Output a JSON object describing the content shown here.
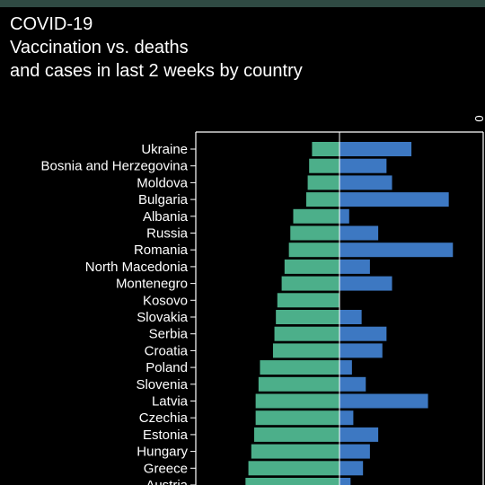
{
  "header": {
    "line1": "COVID-19",
    "line2": "Vaccination vs. deaths",
    "line3": "and cases in last 2 weeks by country"
  },
  "colors": {
    "background": "#000000",
    "top_bar": "#2f4a43",
    "vaccination_bar": "#4caf8a",
    "cases_bar": "#3d78c2",
    "axis": "#ffffff"
  },
  "chart_data": {
    "type": "bar",
    "orientation": "horizontal",
    "categories": [
      "Ukraine",
      "Bosnia and Herzegovina",
      "Moldova",
      "Bulgaria",
      "Albania",
      "Russia",
      "Romania",
      "North Macedonia",
      "Montenegro",
      "Kosovo",
      "Slovakia",
      "Serbia",
      "Croatia",
      "Poland",
      "Slovenia",
      "Latvia",
      "Czechia",
      "Estonia",
      "Hungary",
      "Greece",
      "Austria"
    ],
    "series": [
      {
        "values": [
          19,
          21,
          22,
          23,
          32,
          34,
          35,
          38,
          40,
          43,
          44,
          45,
          46,
          55,
          56,
          58,
          58,
          59,
          61,
          63,
          65
        ]
      },
      {
        "values": [
          52,
          34,
          38,
          79,
          7,
          28,
          82,
          22,
          38,
          0,
          16,
          34,
          31,
          9,
          19,
          64,
          10,
          28,
          22,
          17,
          8
        ]
      }
    ],
    "axis_tick_label": "0",
    "grid": false,
    "legend": "none"
  }
}
